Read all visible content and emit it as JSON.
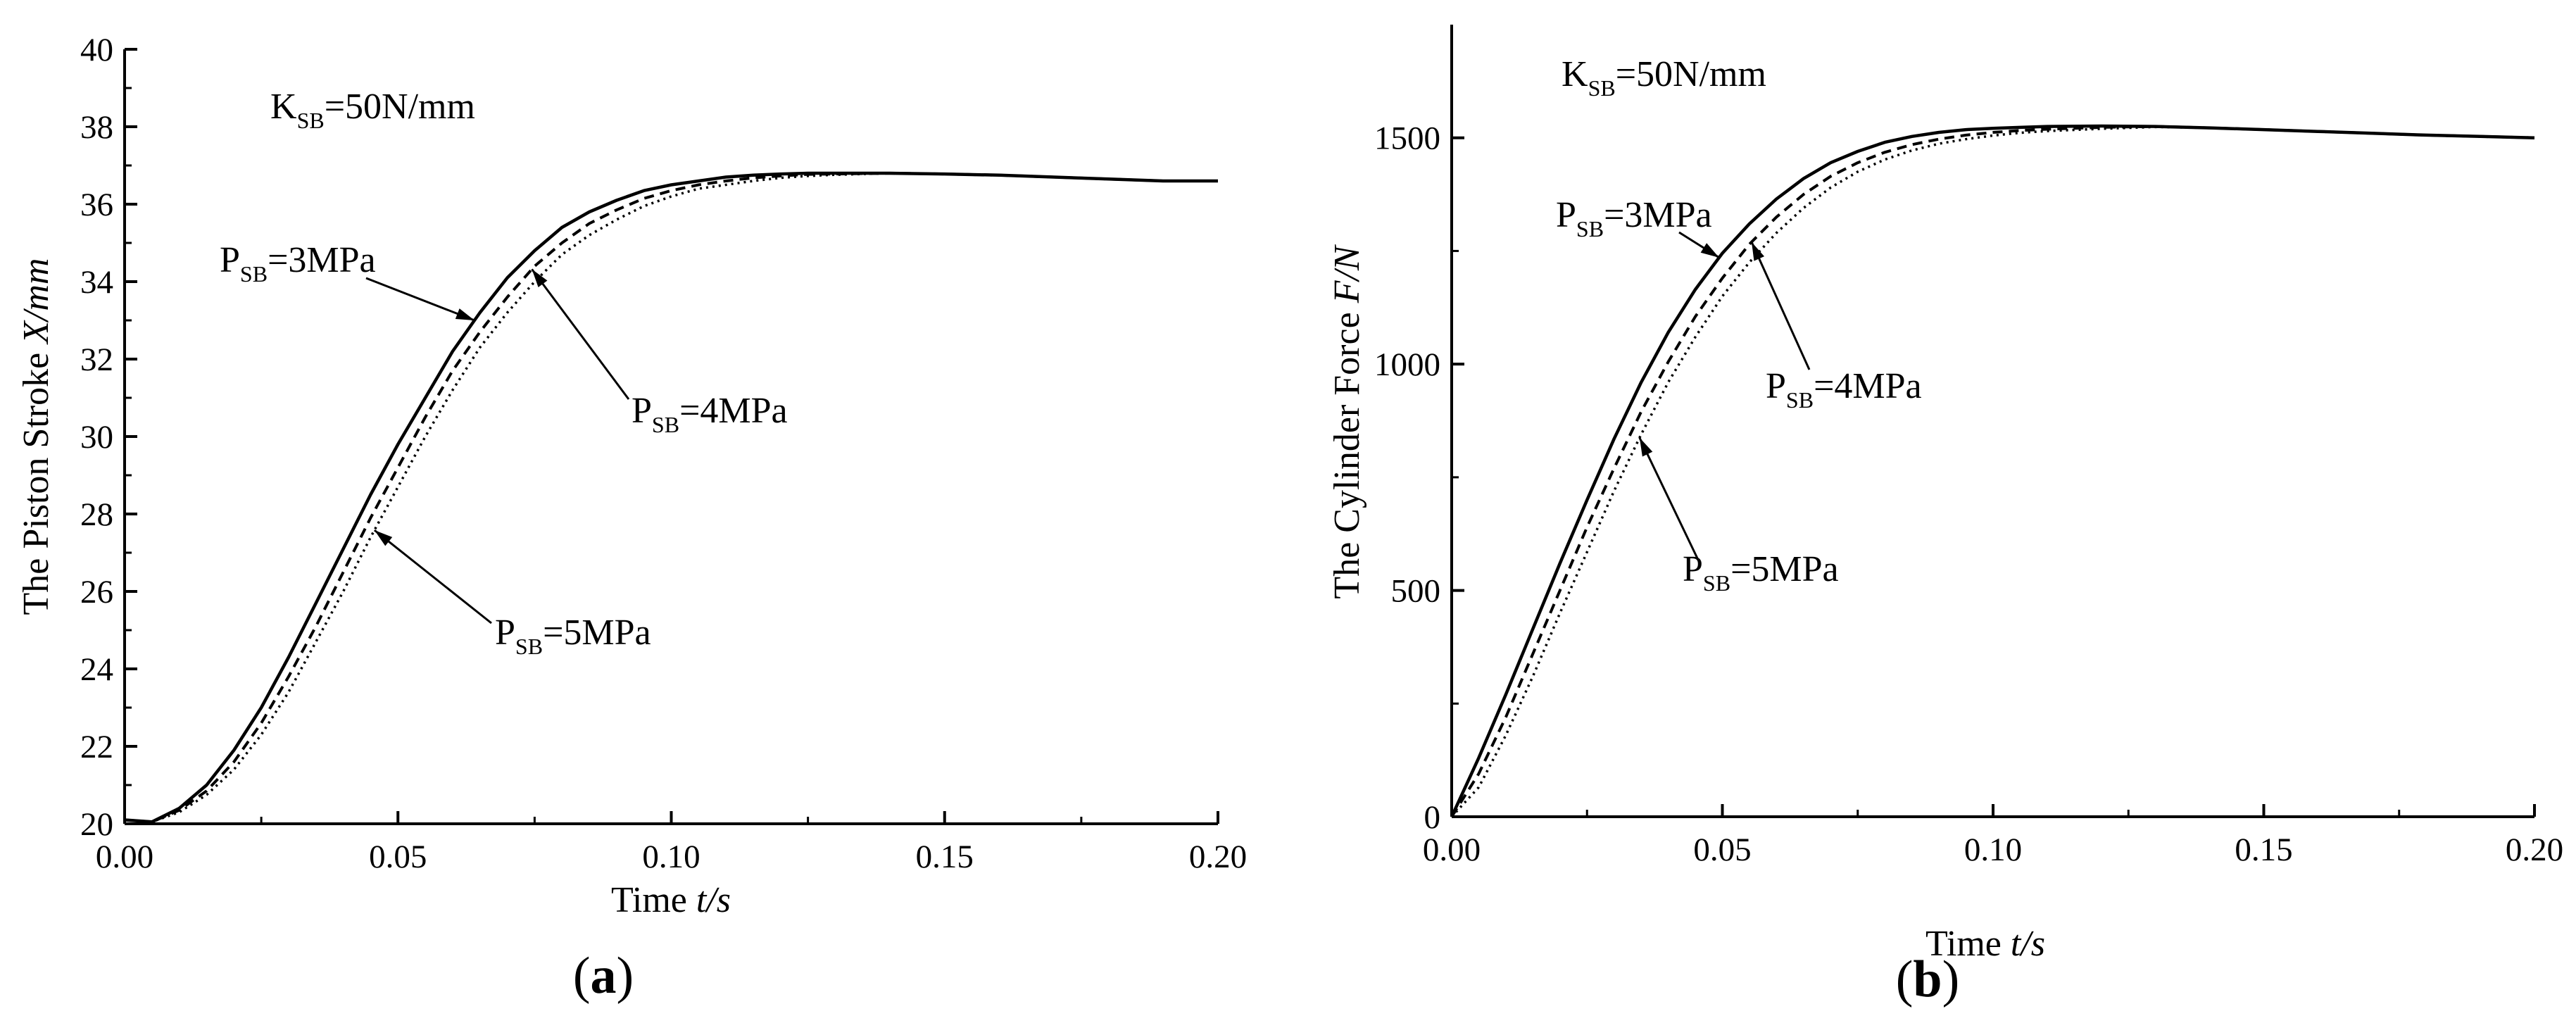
{
  "chart_data": [
    {
      "type": "line",
      "panel_label": {
        "open": "(",
        "letter": "a",
        "close": ")"
      },
      "xlabel": {
        "text": "Time ",
        "unit": "t/s"
      },
      "ylabel": {
        "text": "The Piston Stroke ",
        "unit": "X/mm"
      },
      "xlim": [
        0,
        0.2
      ],
      "ylim": [
        20,
        40
      ],
      "xticks": [
        "0.00",
        "0.05",
        "0.10",
        "0.15",
        "0.20"
      ],
      "yticks": [
        "20",
        "22",
        "24",
        "26",
        "28",
        "30",
        "32",
        "34",
        "36",
        "38",
        "40"
      ],
      "parameter_note": {
        "base": "K",
        "sub": "SB",
        "rest": "=50N/mm"
      },
      "annotations": [
        {
          "series": 0,
          "base": "P",
          "sub": "SB",
          "rest": "=3MPa"
        },
        {
          "series": 1,
          "base": "P",
          "sub": "SB",
          "rest": "=4MPa"
        },
        {
          "series": 2,
          "base": "P",
          "sub": "SB",
          "rest": "=5MPa"
        }
      ],
      "series": [
        {
          "name": "P_SB=3MPa",
          "style": "solid",
          "x": [
            0,
            0.005,
            0.01,
            0.015,
            0.02,
            0.025,
            0.03,
            0.035,
            0.04,
            0.045,
            0.05,
            0.055,
            0.06,
            0.065,
            0.07,
            0.075,
            0.08,
            0.085,
            0.09,
            0.095,
            0.1,
            0.105,
            0.11,
            0.115,
            0.12,
            0.125,
            0.13,
            0.14,
            0.15,
            0.16,
            0.17,
            0.18,
            0.19,
            0.2
          ],
          "y": [
            20.1,
            20.05,
            20.4,
            21.0,
            21.9,
            23.0,
            24.3,
            25.7,
            27.1,
            28.5,
            29.8,
            31.0,
            32.2,
            33.2,
            34.1,
            34.8,
            35.4,
            35.8,
            36.1,
            36.35,
            36.5,
            36.6,
            36.7,
            36.75,
            36.78,
            36.8,
            36.8,
            36.8,
            36.78,
            36.75,
            36.7,
            36.65,
            36.6,
            36.6
          ]
        },
        {
          "name": "P_SB=4MPa",
          "style": "dashed",
          "x": [
            0,
            0.005,
            0.01,
            0.015,
            0.02,
            0.025,
            0.03,
            0.035,
            0.04,
            0.045,
            0.05,
            0.055,
            0.06,
            0.065,
            0.07,
            0.075,
            0.08,
            0.085,
            0.09,
            0.095,
            0.1,
            0.105,
            0.11,
            0.115,
            0.12,
            0.125,
            0.13,
            0.14,
            0.15,
            0.16,
            0.17,
            0.18,
            0.19,
            0.2
          ],
          "y": [
            20.1,
            20.05,
            20.35,
            20.85,
            21.6,
            22.6,
            23.8,
            25.1,
            26.5,
            27.9,
            29.2,
            30.5,
            31.7,
            32.7,
            33.6,
            34.4,
            35.0,
            35.5,
            35.85,
            36.15,
            36.35,
            36.5,
            36.6,
            36.68,
            36.73,
            36.77,
            36.78,
            36.8,
            36.78,
            36.75,
            36.7,
            36.65,
            36.6,
            36.6
          ]
        },
        {
          "name": "P_SB=5MPa",
          "style": "dotted",
          "x": [
            0,
            0.005,
            0.01,
            0.015,
            0.02,
            0.025,
            0.03,
            0.035,
            0.04,
            0.045,
            0.05,
            0.055,
            0.06,
            0.065,
            0.07,
            0.075,
            0.08,
            0.085,
            0.09,
            0.095,
            0.1,
            0.105,
            0.11,
            0.115,
            0.12,
            0.125,
            0.13,
            0.14,
            0.15,
            0.16,
            0.17,
            0.18,
            0.19,
            0.2
          ],
          "y": [
            20.1,
            20.05,
            20.3,
            20.75,
            21.4,
            22.3,
            23.4,
            24.7,
            26.0,
            27.4,
            28.7,
            30.0,
            31.2,
            32.3,
            33.2,
            34.0,
            34.7,
            35.2,
            35.6,
            35.95,
            36.2,
            36.4,
            36.5,
            36.6,
            36.68,
            36.73,
            36.76,
            36.8,
            36.78,
            36.75,
            36.7,
            36.65,
            36.6,
            36.6
          ]
        }
      ]
    },
    {
      "type": "line",
      "panel_label": {
        "open": "(",
        "letter": "b",
        "close": ")"
      },
      "xlabel": {
        "text": "Time ",
        "unit": "t/s"
      },
      "ylabel": {
        "text": "The Cylinder Force ",
        "unit": "F/N"
      },
      "xlim": [
        0,
        0.2
      ],
      "ylim": [
        0,
        1750
      ],
      "xticks": [
        "0.00",
        "0.05",
        "0.10",
        "0.15",
        "0.20"
      ],
      "yticks": [
        "0",
        "500",
        "1000",
        "1500"
      ],
      "parameter_note": {
        "base": "K",
        "sub": "SB",
        "rest": "=50N/mm"
      },
      "annotations": [
        {
          "series": 0,
          "base": "P",
          "sub": "SB",
          "rest": "=3MPa"
        },
        {
          "series": 1,
          "base": "P",
          "sub": "SB",
          "rest": "=4MPa"
        },
        {
          "series": 2,
          "base": "P",
          "sub": "SB",
          "rest": "=5MPa"
        }
      ],
      "series": [
        {
          "name": "P_SB=3MPa",
          "style": "solid",
          "x": [
            0,
            0.005,
            0.01,
            0.015,
            0.02,
            0.025,
            0.03,
            0.035,
            0.04,
            0.045,
            0.05,
            0.055,
            0.06,
            0.065,
            0.07,
            0.075,
            0.08,
            0.085,
            0.09,
            0.095,
            0.1,
            0.105,
            0.11,
            0.12,
            0.13,
            0.14,
            0.15,
            0.16,
            0.17,
            0.18,
            0.19,
            0.2
          ],
          "y": [
            0,
            130,
            270,
            415,
            560,
            700,
            835,
            960,
            1070,
            1165,
            1245,
            1310,
            1365,
            1410,
            1445,
            1470,
            1490,
            1503,
            1512,
            1518,
            1521,
            1523,
            1525,
            1526,
            1525,
            1522,
            1518,
            1514,
            1510,
            1506,
            1503,
            1500
          ]
        },
        {
          "name": "P_SB=4MPa",
          "style": "dashed",
          "x": [
            0,
            0.005,
            0.01,
            0.015,
            0.02,
            0.025,
            0.03,
            0.035,
            0.04,
            0.045,
            0.05,
            0.055,
            0.06,
            0.065,
            0.07,
            0.075,
            0.08,
            0.085,
            0.09,
            0.095,
            0.1,
            0.105,
            0.11,
            0.12,
            0.13,
            0.14,
            0.15,
            0.16,
            0.17,
            0.18,
            0.19,
            0.2
          ],
          "y": [
            0,
            95,
            220,
            360,
            500,
            640,
            770,
            895,
            1005,
            1105,
            1190,
            1265,
            1325,
            1375,
            1415,
            1445,
            1468,
            1485,
            1497,
            1506,
            1512,
            1516,
            1519,
            1523,
            1525,
            1522,
            1518,
            1514,
            1510,
            1506,
            1503,
            1500
          ]
        },
        {
          "name": "P_SB=5MPa",
          "style": "dotted",
          "x": [
            0,
            0.005,
            0.01,
            0.015,
            0.02,
            0.025,
            0.03,
            0.035,
            0.04,
            0.045,
            0.05,
            0.055,
            0.06,
            0.065,
            0.07,
            0.075,
            0.08,
            0.085,
            0.09,
            0.095,
            0.1,
            0.105,
            0.11,
            0.12,
            0.13,
            0.14,
            0.15,
            0.16,
            0.17,
            0.18,
            0.19,
            0.2
          ],
          "y": [
            0,
            65,
            180,
            310,
            450,
            585,
            720,
            845,
            960,
            1060,
            1150,
            1225,
            1290,
            1345,
            1390,
            1425,
            1452,
            1472,
            1487,
            1497,
            1505,
            1511,
            1515,
            1520,
            1524,
            1522,
            1518,
            1514,
            1510,
            1506,
            1503,
            1500
          ]
        }
      ]
    }
  ]
}
